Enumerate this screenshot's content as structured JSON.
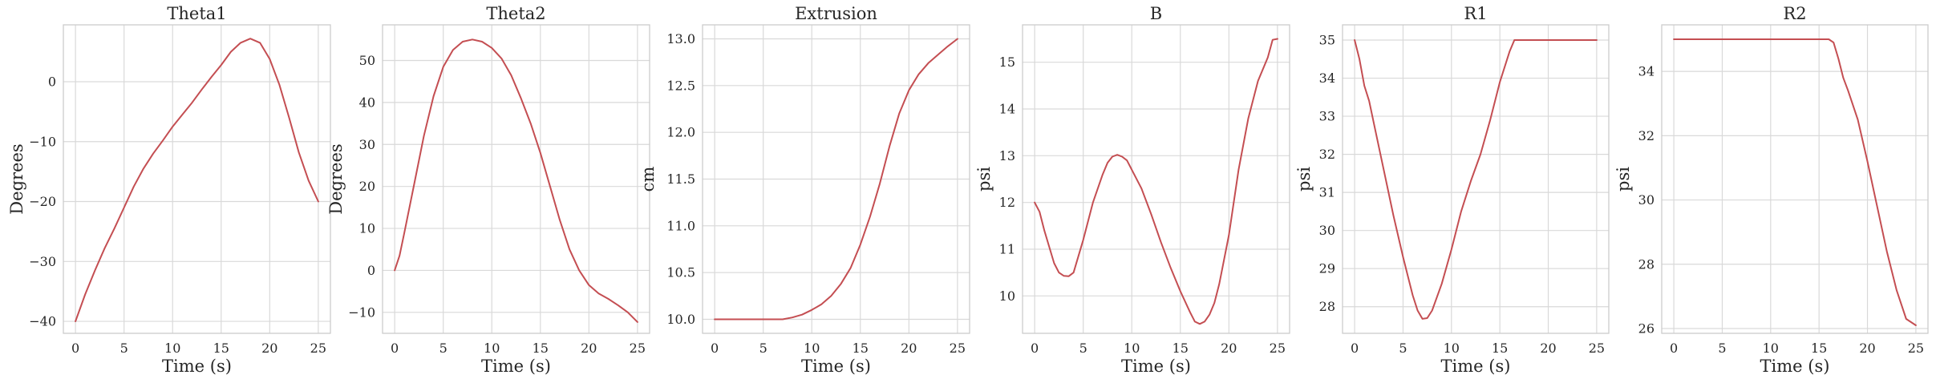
{
  "chart_data": [
    {
      "type": "line",
      "title": "Theta1",
      "xlabel": "Time (s)",
      "ylabel": "Degrees",
      "xlim": [
        -1.25,
        26.25
      ],
      "ylim": [
        -42,
        9.5
      ],
      "xticks": [
        0,
        5,
        10,
        15,
        20,
        25
      ],
      "xticklabels": [
        "0",
        "5",
        "10",
        "15",
        "20",
        "25"
      ],
      "yticks": [
        -40,
        -30,
        -20,
        -10,
        0
      ],
      "yticklabels": [
        "−40",
        "−30",
        "−20",
        "−10",
        "0"
      ],
      "grid": true,
      "color": "#c44e52",
      "x": [
        0,
        1,
        2,
        3,
        4,
        5,
        6,
        7,
        8,
        9,
        10,
        11,
        12,
        13,
        14,
        15,
        16,
        17,
        18,
        19,
        20,
        21,
        22,
        23,
        24,
        25
      ],
      "y": [
        -40,
        -35.5,
        -31.5,
        -27.8,
        -24.5,
        -21,
        -17.5,
        -14.5,
        -12,
        -9.8,
        -7.5,
        -5.5,
        -3.5,
        -1.3,
        0.8,
        2.8,
        5,
        6.5,
        7.2,
        6.5,
        3.8,
        -0.5,
        -6,
        -11.8,
        -16.5,
        -20
      ]
    },
    {
      "type": "line",
      "title": "Theta2",
      "xlabel": "Time (s)",
      "ylabel": "Degrees",
      "xlim": [
        -1.25,
        26.25
      ],
      "ylim": [
        -15,
        58.5
      ],
      "xticks": [
        0,
        5,
        10,
        15,
        20,
        25
      ],
      "xticklabels": [
        "0",
        "5",
        "10",
        "15",
        "20",
        "25"
      ],
      "yticks": [
        -10,
        0,
        10,
        20,
        30,
        40,
        50
      ],
      "yticklabels": [
        "−10",
        "0",
        "10",
        "20",
        "30",
        "40",
        "50"
      ],
      "grid": true,
      "color": "#c44e52",
      "x": [
        0,
        0.5,
        1,
        2,
        3,
        4,
        5,
        6,
        7,
        8,
        9,
        10,
        11,
        12,
        13,
        14,
        15,
        16,
        17,
        18,
        19,
        20,
        21,
        22,
        23,
        24,
        25
      ],
      "y": [
        0,
        3.5,
        9,
        20.5,
        32,
        41.5,
        48.5,
        52.5,
        54.5,
        55,
        54.5,
        53,
        50.5,
        46.5,
        41,
        35,
        28,
        20,
        12,
        5,
        0,
        -3.5,
        -5.5,
        -6.8,
        -8.3,
        -10,
        -12.3
      ]
    },
    {
      "type": "line",
      "title": "Extrusion",
      "xlabel": "Time (s)",
      "ylabel": "cm",
      "xlim": [
        -1.25,
        26.25
      ],
      "ylim": [
        9.85,
        13.15
      ],
      "xticks": [
        0,
        5,
        10,
        15,
        20,
        25
      ],
      "xticklabels": [
        "0",
        "5",
        "10",
        "15",
        "20",
        "25"
      ],
      "yticks": [
        10.0,
        10.5,
        11.0,
        11.5,
        12.0,
        12.5,
        13.0
      ],
      "yticklabels": [
        "10.0",
        "10.5",
        "11.0",
        "11.5",
        "12.0",
        "12.5",
        "13.0"
      ],
      "grid": true,
      "color": "#c44e52",
      "x": [
        0,
        1,
        2,
        3,
        4,
        5,
        6,
        7,
        8,
        9,
        10,
        11,
        12,
        13,
        14,
        15,
        16,
        17,
        18,
        19,
        20,
        21,
        22,
        23,
        24,
        25
      ],
      "y": [
        10,
        10,
        10,
        10,
        10,
        10,
        10,
        10,
        10.02,
        10.05,
        10.1,
        10.16,
        10.25,
        10.38,
        10.55,
        10.8,
        11.1,
        11.45,
        11.85,
        12.2,
        12.45,
        12.62,
        12.74,
        12.83,
        12.92,
        13.0
      ]
    },
    {
      "type": "line",
      "title": "B",
      "xlabel": "Time (s)",
      "ylabel": "psi",
      "xlim": [
        -1.25,
        26.25
      ],
      "ylim": [
        9.2,
        15.8
      ],
      "xticks": [
        0,
        5,
        10,
        15,
        20,
        25
      ],
      "xticklabels": [
        "0",
        "5",
        "10",
        "15",
        "20",
        "25"
      ],
      "yticks": [
        10,
        11,
        12,
        13,
        14,
        15
      ],
      "yticklabels": [
        "10",
        "11",
        "12",
        "13",
        "14",
        "15"
      ],
      "grid": true,
      "color": "#c44e52",
      "x": [
        0,
        0.5,
        1,
        1.5,
        2,
        2.5,
        3,
        3.5,
        4,
        5,
        6,
        7,
        7.5,
        8,
        8.5,
        9,
        9.5,
        10,
        11,
        12,
        13,
        14,
        15,
        16,
        16.5,
        17,
        17.5,
        18,
        18.5,
        19,
        20,
        21,
        22,
        23,
        24,
        24.5,
        25
      ],
      "y": [
        12,
        11.8,
        11.4,
        11.05,
        10.7,
        10.5,
        10.43,
        10.42,
        10.5,
        11.2,
        12,
        12.6,
        12.85,
        12.98,
        13.02,
        12.98,
        12.9,
        12.7,
        12.3,
        11.75,
        11.15,
        10.6,
        10.1,
        9.65,
        9.45,
        9.4,
        9.45,
        9.6,
        9.85,
        10.25,
        11.3,
        12.7,
        13.8,
        14.6,
        15.1,
        15.48,
        15.5
      ]
    },
    {
      "type": "line",
      "title": "R1",
      "xlabel": "Time (s)",
      "ylabel": "psi",
      "xlim": [
        -1.25,
        26.25
      ],
      "ylim": [
        27.3,
        35.4
      ],
      "xticks": [
        0,
        5,
        10,
        15,
        20,
        25
      ],
      "xticklabels": [
        "0",
        "5",
        "10",
        "15",
        "20",
        "25"
      ],
      "yticks": [
        28,
        29,
        30,
        31,
        32,
        33,
        34,
        35
      ],
      "yticklabels": [
        "28",
        "29",
        "30",
        "31",
        "32",
        "33",
        "34",
        "35"
      ],
      "grid": true,
      "color": "#c44e52",
      "x": [
        0,
        0.5,
        1,
        1.5,
        2,
        3,
        4,
        5,
        5.5,
        6,
        6.5,
        7,
        7.5,
        8,
        9,
        10,
        11,
        12,
        13,
        14,
        15,
        16,
        16.5,
        17,
        18,
        19,
        20,
        21,
        22,
        23,
        24,
        25
      ],
      "y": [
        35,
        34.5,
        33.8,
        33.4,
        32.8,
        31.6,
        30.4,
        29.3,
        28.8,
        28.3,
        27.9,
        27.68,
        27.7,
        27.9,
        28.6,
        29.5,
        30.5,
        31.3,
        32,
        32.9,
        33.9,
        34.7,
        35,
        35,
        35,
        35,
        35,
        35,
        35,
        35,
        35,
        35
      ]
    },
    {
      "type": "line",
      "title": "R2",
      "xlabel": "Time (s)",
      "ylabel": "psi",
      "xlim": [
        -1.25,
        26.25
      ],
      "ylim": [
        25.85,
        35.45
      ],
      "xticks": [
        0,
        5,
        10,
        15,
        20,
        25
      ],
      "xticklabels": [
        "0",
        "5",
        "10",
        "15",
        "20",
        "25"
      ],
      "yticks": [
        26,
        28,
        30,
        32,
        34
      ],
      "yticklabels": [
        "26",
        "28",
        "30",
        "32",
        "34"
      ],
      "grid": true,
      "color": "#c44e52",
      "x": [
        0,
        5,
        10,
        15,
        15.5,
        16,
        16.5,
        17,
        17.5,
        18,
        19,
        20,
        21,
        22,
        23,
        24,
        25
      ],
      "y": [
        35,
        35,
        35,
        35,
        35,
        35,
        34.9,
        34.4,
        33.8,
        33.4,
        32.5,
        31.2,
        29.8,
        28.4,
        27.2,
        26.3,
        26.1
      ]
    }
  ]
}
